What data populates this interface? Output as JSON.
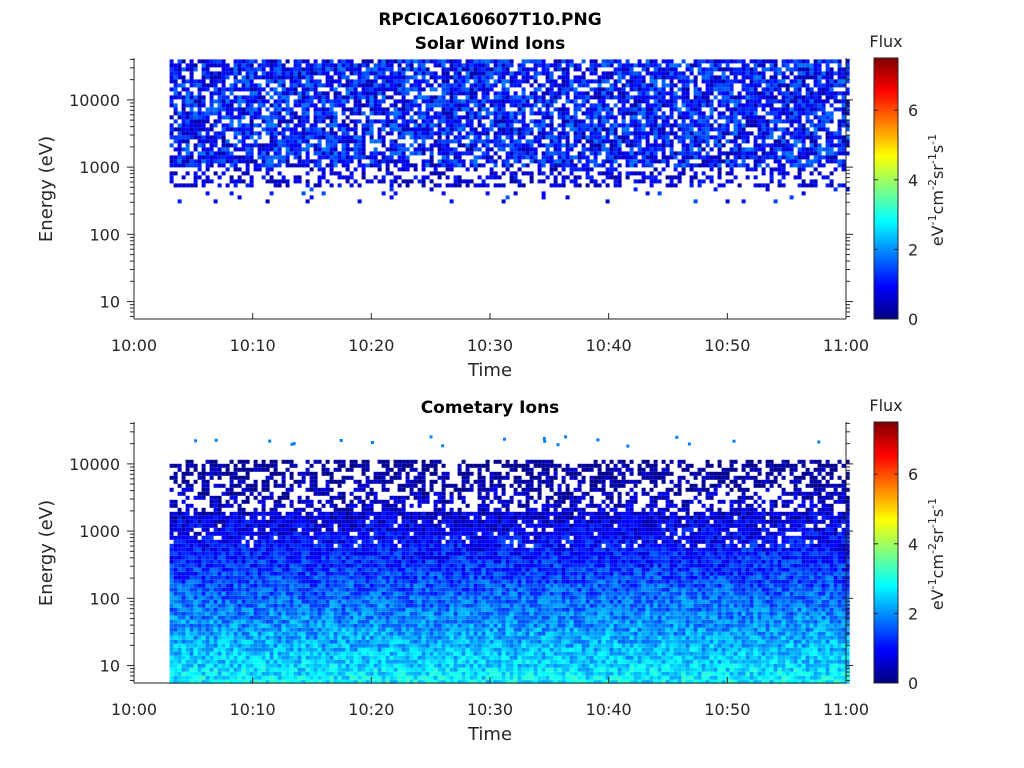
{
  "figure": {
    "title": "RPCICA160607T10.PNG"
  },
  "colormap": {
    "stops": [
      "#00007f",
      "#0000ff",
      "#007fff",
      "#00ffff",
      "#7fff7f",
      "#ffff00",
      "#ff7f00",
      "#ff0000",
      "#7f0000"
    ]
  },
  "chart_data": [
    {
      "type": "heatmap",
      "title": "Solar Wind Ions",
      "xlabel": "Time",
      "ylabel": "Energy (eV)",
      "x_ticks": [
        "10:00",
        "10:10",
        "10:20",
        "10:30",
        "10:40",
        "10:50",
        "11:00"
      ],
      "y_ticks": [
        "10",
        "100",
        "1000",
        "10000"
      ],
      "y_scale": "log",
      "ylim": [
        5.5,
        42000
      ],
      "data_extent": {
        "x_start": "10:03",
        "x_end": "11:00",
        "energy_min": 300,
        "energy_max": 40000,
        "dense_energy_min": 1100,
        "sparse_energy_floor": 550
      },
      "colorbar": {
        "label": "Flux",
        "units_base": "eV",
        "units_sup1": "-1",
        "units_mid": "cm",
        "units_sup2": "-2",
        "units_mid2": "sr",
        "units_sup3": "-1",
        "units_end": "s",
        "units_sup4": "-1",
        "ticks": [
          "0",
          "2",
          "4",
          "6"
        ],
        "range": [
          0,
          7.5
        ]
      }
    },
    {
      "type": "heatmap",
      "title": "Cometary Ions",
      "xlabel": "Time",
      "ylabel": "Energy (eV)",
      "x_ticks": [
        "10:00",
        "10:10",
        "10:20",
        "10:30",
        "10:40",
        "10:50",
        "11:00"
      ],
      "y_ticks": [
        "10",
        "100",
        "1000",
        "10000"
      ],
      "y_scale": "log",
      "ylim": [
        5.5,
        42000
      ],
      "data_extent": {
        "x_start": "10:03",
        "x_end": "11:00",
        "energy_min": 5.5,
        "energy_max": 11500,
        "stray_energy": 20000
      },
      "colorbar": {
        "label": "Flux",
        "units_base": "eV",
        "units_sup1": "-1",
        "units_mid": "cm",
        "units_sup2": "-2",
        "units_mid2": "sr",
        "units_sup3": "-1",
        "units_end": "s",
        "units_sup4": "-1",
        "ticks": [
          "0",
          "2",
          "4",
          "6"
        ],
        "range": [
          0,
          7.5
        ]
      }
    }
  ]
}
